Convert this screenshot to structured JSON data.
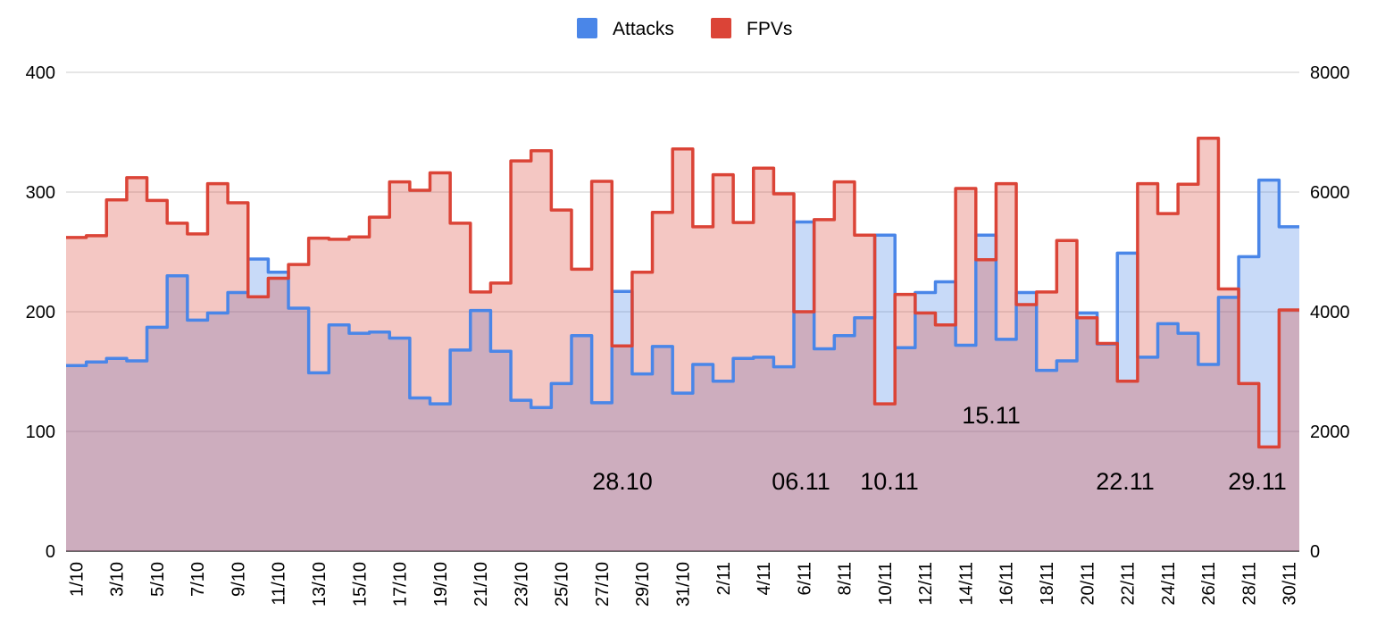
{
  "chart_data": {
    "type": "area",
    "step": true,
    "title": "",
    "left_axis": {
      "min": 0,
      "max": 400,
      "ticks": [
        "0",
        "100",
        "200",
        "300",
        "400"
      ]
    },
    "right_axis": {
      "min": 0,
      "max": 8000,
      "ticks": [
        "0",
        "2000",
        "4000",
        "6000",
        "8000"
      ]
    },
    "legend": {
      "position": "top-center",
      "entries": [
        {
          "name": "Attacks",
          "color": "#4a86e8"
        },
        {
          "name": "FPVs",
          "color": "#db4437"
        }
      ]
    },
    "categories": [
      "1/10",
      "2/10",
      "3/10",
      "4/10",
      "5/10",
      "6/10",
      "7/10",
      "8/10",
      "9/10",
      "10/10",
      "11/10",
      "12/10",
      "13/10",
      "14/10",
      "15/10",
      "16/10",
      "17/10",
      "18/10",
      "19/10",
      "20/10",
      "21/10",
      "22/10",
      "23/10",
      "24/10",
      "25/10",
      "26/10",
      "27/10",
      "28/10",
      "29/10",
      "30/10",
      "31/10",
      "1/11",
      "2/11",
      "3/11",
      "4/11",
      "5/11",
      "6/11",
      "7/11",
      "8/11",
      "9/11",
      "10/11",
      "11/11",
      "12/11",
      "13/11",
      "14/11",
      "15/11",
      "16/11",
      "17/11",
      "18/11",
      "19/11",
      "20/11",
      "21/11",
      "22/11",
      "23/11",
      "24/11",
      "25/11",
      "26/11",
      "27/11",
      "28/11",
      "29/11",
      "30/11"
    ],
    "x_tick_labels": [
      "1/10",
      "3/10",
      "5/10",
      "7/10",
      "9/10",
      "11/10",
      "13/10",
      "15/10",
      "17/10",
      "19/10",
      "21/10",
      "23/10",
      "25/10",
      "27/10",
      "29/10",
      "31/10",
      "2/11",
      "4/11",
      "6/11",
      "8/11",
      "10/11",
      "12/11",
      "14/11",
      "16/11",
      "18/11",
      "20/11",
      "22/11",
      "24/11",
      "26/11",
      "28/11",
      "30/11"
    ],
    "series": [
      {
        "name": "Attacks",
        "axis": "left",
        "color": "#4a86e8",
        "values": [
          155,
          158,
          161,
          159,
          187,
          230,
          193,
          199,
          216,
          244,
          233,
          203,
          149,
          189,
          182,
          183,
          178,
          128,
          123,
          168,
          201,
          167,
          126,
          120,
          140,
          180,
          124,
          217,
          148,
          171,
          132,
          156,
          142,
          161,
          162,
          154,
          275,
          169,
          180,
          195,
          264,
          170,
          216,
          225,
          172,
          264,
          177,
          216,
          151,
          159,
          199,
          173,
          249,
          162,
          190,
          182,
          156,
          212,
          246,
          310,
          271
        ]
      },
      {
        "name": "FPVs",
        "axis": "right",
        "color": "#db4437",
        "values": [
          5240,
          5270,
          5870,
          6240,
          5860,
          5480,
          5300,
          6140,
          5820,
          4250,
          4560,
          4790,
          5230,
          5210,
          5250,
          5580,
          6170,
          6030,
          6320,
          5480,
          4330,
          4480,
          6520,
          6690,
          5700,
          4710,
          6180,
          3430,
          4660,
          5660,
          6720,
          5420,
          6290,
          5490,
          6400,
          5970,
          4000,
          5540,
          6170,
          5280,
          2460,
          4290,
          3980,
          3780,
          6060,
          4870,
          6140,
          4120,
          4330,
          5190,
          3900,
          3470,
          2840,
          6140,
          5640,
          6130,
          6900,
          4380,
          2800,
          1740,
          4030
        ]
      }
    ],
    "annotations": [
      "28.10",
      "06.11",
      "10.11",
      "15.11",
      "22.11",
      "29.11"
    ]
  }
}
